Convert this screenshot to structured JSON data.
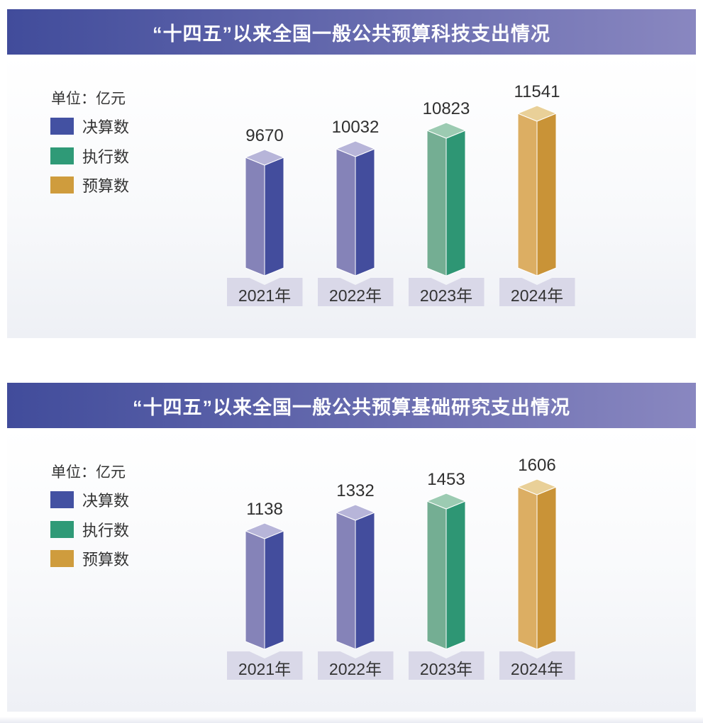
{
  "chart_data": [
    {
      "type": "bar",
      "title": "“十四五”以来全国一般公共预算科技支出情况",
      "unit": "单位：亿元",
      "categories": [
        "2021年",
        "2022年",
        "2023年",
        "2024年"
      ],
      "values": [
        9670,
        10032,
        10823,
        11541
      ],
      "bar_series": [
        "决算数",
        "决算数",
        "执行数",
        "预算数"
      ],
      "legend": [
        {
          "label": "决算数"
        },
        {
          "label": "执行数"
        },
        {
          "label": "预算数"
        }
      ],
      "grid": false,
      "legend_position": "top-left",
      "ylabel": "亿元"
    },
    {
      "type": "bar",
      "title": "“十四五”以来全国一般公共预算基础研究支出情况",
      "unit": "单位：亿元",
      "categories": [
        "2021年",
        "2022年",
        "2023年",
        "2024年"
      ],
      "values": [
        1138,
        1332,
        1453,
        1606
      ],
      "bar_series": [
        "决算数",
        "决算数",
        "执行数",
        "预算数"
      ],
      "legend": [
        {
          "label": "决算数"
        },
        {
          "label": "执行数"
        },
        {
          "label": "预算数"
        }
      ],
      "grid": false,
      "legend_position": "top-left",
      "ylabel": "亿元"
    }
  ],
  "colors": {
    "banner_left": "#414c9b",
    "banner_right": "#8987c0",
    "card_bg_bottom": "#eef0f5",
    "plate_bg": "#d9d8e8",
    "series": {
      "决算数": {
        "left": "#8583b8",
        "right": "#434d9d",
        "top": "#b7b5d9",
        "swatch": "#4351a2"
      },
      "执行数": {
        "left": "#74ae93",
        "right": "#2e9674",
        "top": "#9ccbb2",
        "swatch": "#2f9a77"
      },
      "预算数": {
        "left": "#dcae63",
        "right": "#c99337",
        "top": "#e9d098",
        "swatch": "#cf9c3d"
      }
    }
  }
}
